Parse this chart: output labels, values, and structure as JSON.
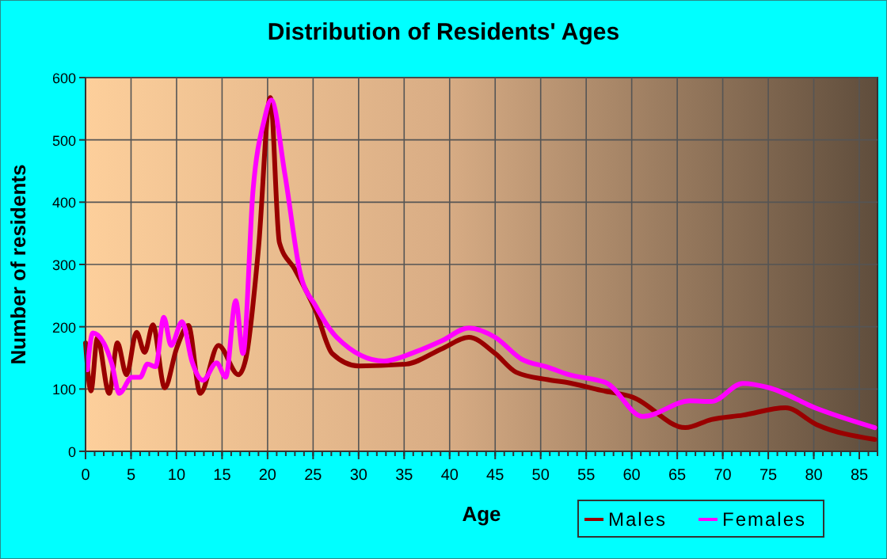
{
  "chart_data": {
    "type": "line",
    "title": "Distribution of Residents' Ages",
    "xlabel": "Age",
    "ylabel": "Number of residents",
    "xlim": [
      0,
      87
    ],
    "xticks": [
      0,
      5,
      10,
      15,
      20,
      25,
      30,
      35,
      40,
      45,
      50,
      55,
      60,
      65,
      70,
      75,
      80,
      85
    ],
    "ylim": [
      0,
      600
    ],
    "yticks": [
      0,
      100,
      200,
      300,
      400,
      500,
      600
    ],
    "grid": true,
    "legend": "bottom right",
    "marker": "none",
    "line_style": "solid",
    "series": [
      {
        "name": "Males",
        "color": "#990000",
        "x": [
          0,
          0.6,
          1.3,
          2.6,
          3.5,
          4.5,
          5.6,
          6.5,
          7.4,
          8.7,
          10,
          11.3,
          12.6,
          14.6,
          16.8,
          17.6,
          19,
          20.3,
          21.3,
          23,
          25.3,
          27.1,
          30,
          35.2,
          39.2,
          42.1,
          45,
          47.3,
          50.8,
          53.1,
          56.6,
          60.1,
          65.9,
          68.75,
          72.2,
          76.9,
          80.3,
          86.7
        ],
        "values": [
          174,
          97,
          182,
          93,
          174,
          123,
          191,
          159,
          203,
          102,
          165,
          202,
          93,
          170,
          123,
          148,
          326,
          568,
          335,
          292,
          225,
          157,
          137,
          140,
          165,
          183,
          157,
          127,
          115,
          110,
          98,
          87,
          38,
          51,
          58,
          70,
          43,
          19
        ]
      },
      {
        "name": "Females",
        "color": "#ff00ff",
        "x": [
          0.2,
          0.8,
          2,
          2.9,
          3.7,
          5.1,
          6,
          6.8,
          7.7,
          8.6,
          9.4,
          10.6,
          11.7,
          12.9,
          14.4,
          15.4,
          16.5,
          17.3,
          18.4,
          19.6,
          20.4,
          21.9,
          23.6,
          25.3,
          27.6,
          32.8,
          36.3,
          39.2,
          42.1,
          45,
          47.9,
          50.8,
          53.1,
          57.2,
          61.2,
          66.4,
          68.75,
          72.2,
          75.1,
          80.3,
          86.7
        ],
        "values": [
          131,
          190,
          174,
          140,
          93,
          119,
          119,
          140,
          136,
          215,
          170,
          208,
          144,
          114,
          142,
          119,
          242,
          157,
          419,
          530,
          564,
          445,
          285,
          233,
          183,
          145,
          160,
          178,
          198,
          183,
          148,
          135,
          123,
          110,
          56,
          81,
          80,
          109,
          102,
          69,
          38
        ]
      }
    ]
  }
}
